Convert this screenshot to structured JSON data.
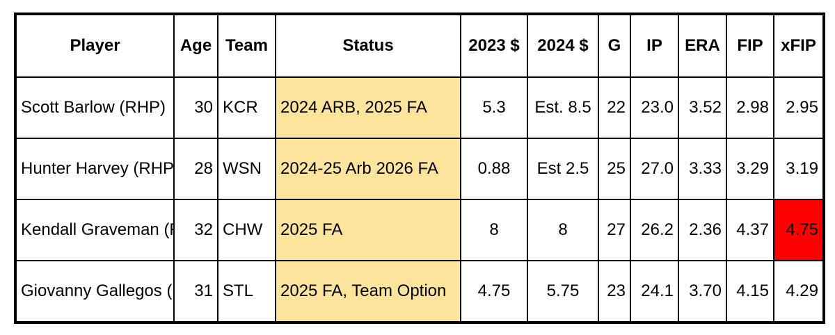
{
  "columns": [
    "Player",
    "Age",
    "Team",
    "Status",
    "2023 $",
    "2024 $",
    "G",
    "IP",
    "ERA",
    "FIP",
    "xFIP"
  ],
  "rows": [
    [
      "Scott Barlow  (RHP)",
      "30",
      "KCR",
      "2024 ARB, 2025 FA",
      "5.3",
      "Est. 8.5",
      "22",
      "23.0",
      "3.52",
      "2.98",
      "2.95"
    ],
    [
      "Hunter Harvey (RHP)",
      "28",
      "WSN",
      "2024-25 Arb 2026 FA",
      "0.88",
      "Est  2.5",
      "25",
      "27.0",
      "3.33",
      "3.29",
      "3.19"
    ],
    [
      "Kendall Graveman (RHP)",
      "32",
      "CHW",
      "2025 FA",
      "8",
      "8",
      "27",
      "26.2",
      "2.36",
      "4.37",
      "4.75"
    ],
    [
      "Giovanny Gallegos (RHP)",
      "31",
      "STL",
      "2025 FA, Team Option",
      "4.75",
      "5.75",
      "23",
      "24.1",
      "3.70",
      "4.15",
      "4.29"
    ]
  ],
  "colors": {
    "status_fill": "#fde49c",
    "highlight_fill": "#ff0000"
  }
}
